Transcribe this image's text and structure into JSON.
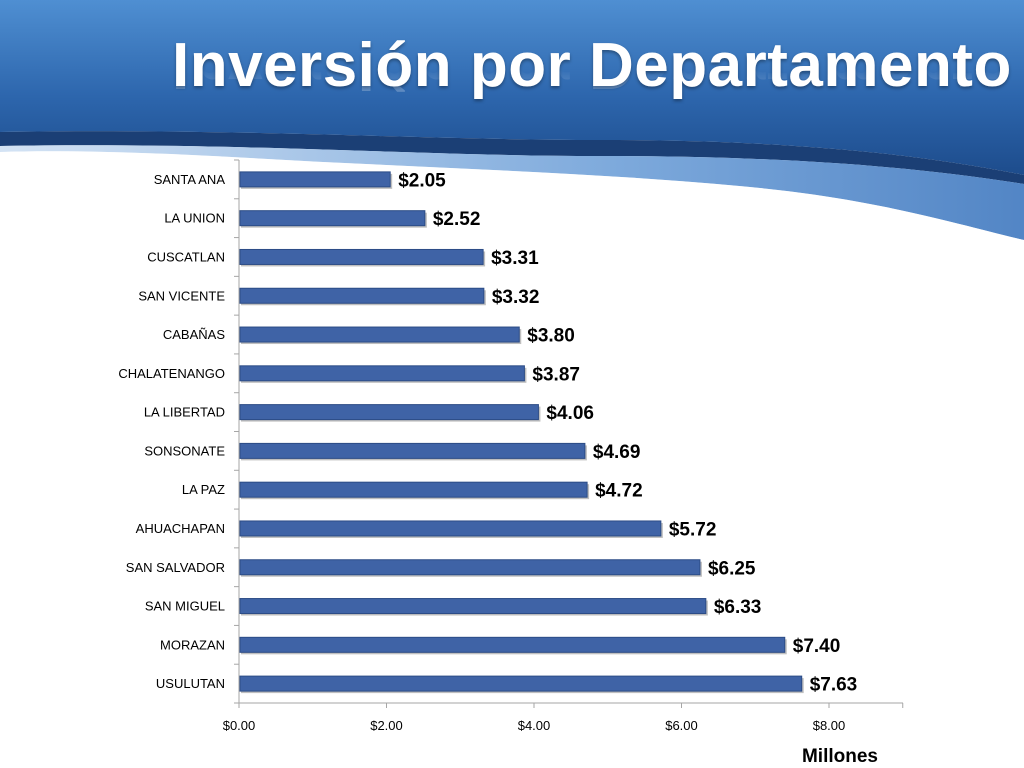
{
  "slide": {
    "title": "Inversión por Departamento"
  },
  "colors": {
    "bar": "#3f63a6",
    "bar_border": "#2c4c86",
    "banner_dark": "#1f4f8f",
    "banner_light": "#4a86c8",
    "axis": "#a6a6a6"
  },
  "chart_data": {
    "type": "bar",
    "orientation": "horizontal",
    "categories": [
      "SANTA ANA",
      "LA UNION",
      "CUSCATLAN",
      "SAN VICENTE",
      "CABAÑAS",
      "CHALATENANGO",
      "LA LIBERTAD",
      "SONSONATE",
      "LA PAZ",
      "AHUACHAPAN",
      "SAN SALVADOR",
      "SAN MIGUEL",
      "MORAZAN",
      "USULUTAN"
    ],
    "values": [
      2.05,
      2.52,
      3.31,
      3.32,
      3.8,
      3.87,
      4.06,
      4.69,
      4.72,
      5.72,
      6.25,
      6.33,
      7.4,
      7.63
    ],
    "data_labels": [
      "$2.05",
      "$2.52",
      "$3.31",
      "$3.32",
      "$3.80",
      "$3.87",
      "$4.06",
      "$4.69",
      "$4.72",
      "$5.72",
      "$6.25",
      "$6.33",
      "$7.40",
      "$7.63"
    ],
    "xticks": [
      0,
      2,
      4,
      6,
      8
    ],
    "xtick_labels": [
      "$0.00",
      "$2.00",
      "$4.00",
      "$6.00",
      "$8.00"
    ],
    "xlim": [
      0,
      9
    ],
    "xlabel": "Millones",
    "grid": false,
    "legend": "none"
  }
}
